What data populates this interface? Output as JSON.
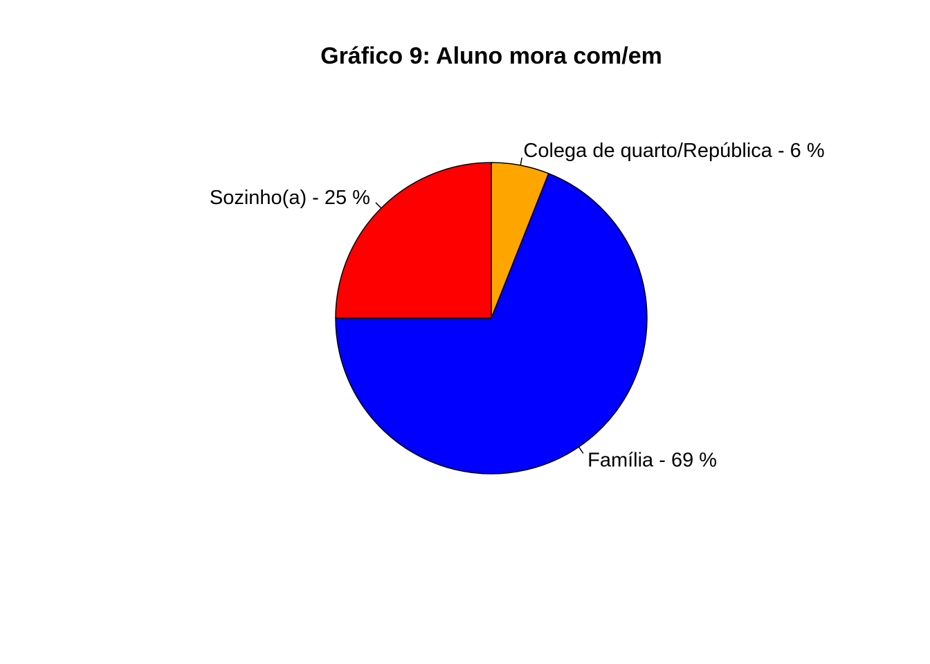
{
  "chart_data": {
    "type": "pie",
    "title": "Gráfico 9: Aluno mora com/em",
    "start_angle_deg": 90,
    "direction": "clockwise",
    "slices": [
      {
        "label": "Colega de quarto/República - 6 %",
        "value": 6,
        "color": "#FFA500"
      },
      {
        "label": "Família - 69 %",
        "value": 69,
        "color": "#0000FF"
      },
      {
        "label": "Sozinho(a) - 25 %",
        "value": 25,
        "color": "#FF0000"
      }
    ]
  }
}
